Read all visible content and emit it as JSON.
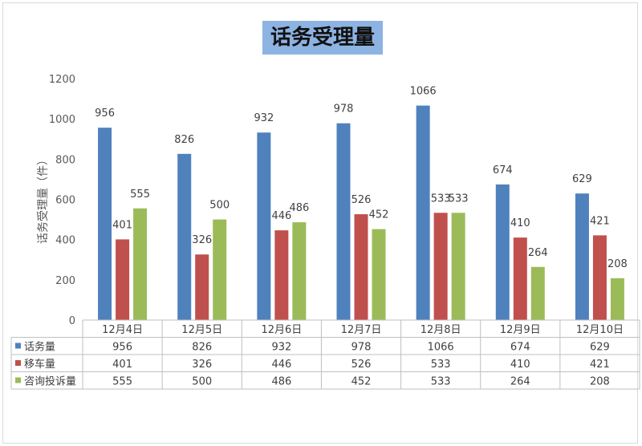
{
  "chart_data": {
    "type": "bar",
    "title": "话务受理量",
    "ylabel": "话务受理量（件）",
    "xlabel": "",
    "ylim": [
      0,
      1200
    ],
    "yticks": [
      0,
      200,
      400,
      600,
      800,
      1000,
      1200
    ],
    "categories": [
      "12月4日",
      "12月5日",
      "12月6日",
      "12月7日",
      "12月8日",
      "12月9日",
      "12月10日"
    ],
    "series": [
      {
        "name": "话务量",
        "color": "#4f81bd",
        "values": [
          956,
          826,
          932,
          978,
          1066,
          674,
          629
        ]
      },
      {
        "name": "移车量",
        "color": "#c0504d",
        "values": [
          401,
          326,
          446,
          526,
          533,
          410,
          421
        ]
      },
      {
        "name": "咨询投诉量",
        "color": "#9bbb59",
        "values": [
          555,
          500,
          486,
          452,
          533,
          264,
          208
        ]
      }
    ],
    "data_table": true,
    "grid": false
  }
}
